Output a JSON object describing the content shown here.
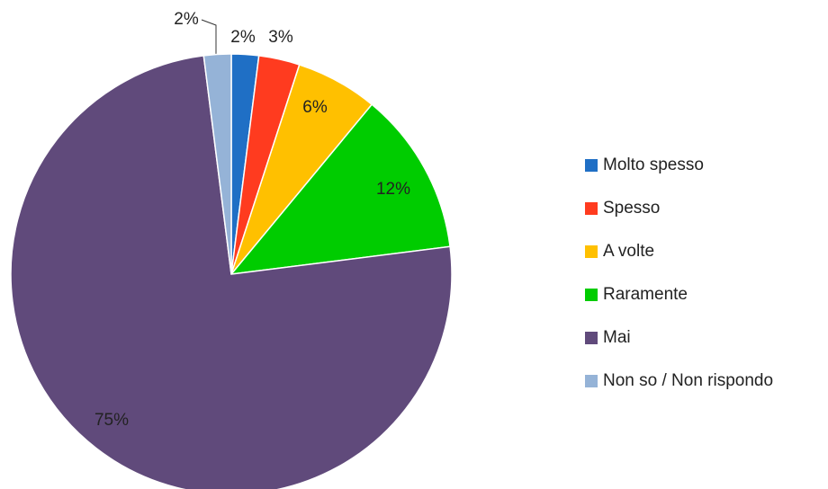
{
  "chart_data": {
    "type": "pie",
    "categories": [
      "Molto spesso",
      "Spesso",
      "A volte",
      "Raramente",
      "Mai",
      "Non so / Non rispondo"
    ],
    "values": [
      2,
      3,
      6,
      12,
      75,
      2
    ],
    "value_labels": [
      "2%",
      "3%",
      "6%",
      "12%",
      "75%",
      "2%"
    ],
    "colors": [
      "#1f6fc5",
      "#ff3b1f",
      "#ffc000",
      "#00cc00",
      "#604a7b",
      "#95b3d7"
    ],
    "legend": "right"
  }
}
